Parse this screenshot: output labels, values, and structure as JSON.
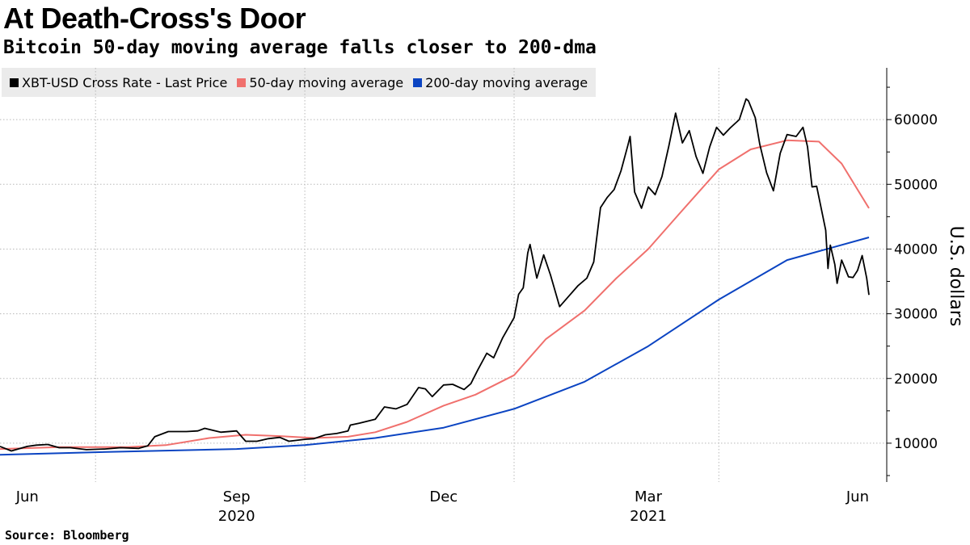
{
  "header": {
    "title": "At Death-Cross's Door",
    "subtitle": "Bitcoin 50-day moving average falls closer to 200-dma"
  },
  "footer": {
    "source": "Source: Bloomberg"
  },
  "chart_data": {
    "type": "line",
    "title": "At Death-Cross's Door",
    "subtitle": "Bitcoin 50-day moving average falls closer to 200-dma",
    "ylabel": "U.S. dollars",
    "xlabel": "",
    "ylim": [
      4000,
      68000
    ],
    "yticks": [
      10000,
      20000,
      30000,
      40000,
      50000,
      60000
    ],
    "ytick_labels": [
      "10000",
      "20000",
      "30000",
      "40000",
      "50000",
      "60000"
    ],
    "xlim": [
      "2020-05-20",
      "2021-06-06"
    ],
    "xticks": [
      {
        "date": "2020-06-01",
        "label": "Jun",
        "year": "",
        "gridline": false
      },
      {
        "date": "2020-09-01",
        "label": "Sep",
        "year": "2020",
        "gridline": false
      },
      {
        "date": "2020-12-01",
        "label": "Dec",
        "year": "",
        "gridline": false
      },
      {
        "date": "2021-03-01",
        "label": "Mar",
        "year": "2021",
        "gridline": false
      },
      {
        "date": "2021-06-01",
        "label": "Jun",
        "year": "",
        "gridline": false
      }
    ],
    "xgrid_dates": [
      "2020-07-01",
      "2020-10-01",
      "2021-01-01",
      "2021-04-01"
    ],
    "grid": true,
    "legend_position": "top-left",
    "colors": {
      "price": "#000000",
      "ma50": "#f0706d",
      "ma200": "#0b44c2",
      "grid": "#b8b8b8",
      "legend_bg": "#ebebeb"
    },
    "series": [
      {
        "name": "XBT-USD Cross Rate - Last Price",
        "color": "#000000",
        "points": [
          [
            "2020-05-20",
            9500
          ],
          [
            "2020-05-25",
            8800
          ],
          [
            "2020-06-01",
            9500
          ],
          [
            "2020-06-05",
            9700
          ],
          [
            "2020-06-10",
            9800
          ],
          [
            "2020-06-15",
            9300
          ],
          [
            "2020-06-20",
            9300
          ],
          [
            "2020-06-27",
            9000
          ],
          [
            "2020-07-05",
            9100
          ],
          [
            "2020-07-12",
            9300
          ],
          [
            "2020-07-20",
            9200
          ],
          [
            "2020-07-24",
            9600
          ],
          [
            "2020-07-27",
            11000
          ],
          [
            "2020-08-02",
            11800
          ],
          [
            "2020-08-10",
            11800
          ],
          [
            "2020-08-15",
            11900
          ],
          [
            "2020-08-18",
            12300
          ],
          [
            "2020-08-25",
            11700
          ],
          [
            "2020-09-01",
            11900
          ],
          [
            "2020-09-05",
            10300
          ],
          [
            "2020-09-10",
            10300
          ],
          [
            "2020-09-15",
            10700
          ],
          [
            "2020-09-20",
            10900
          ],
          [
            "2020-09-24",
            10300
          ],
          [
            "2020-10-01",
            10600
          ],
          [
            "2020-10-05",
            10700
          ],
          [
            "2020-10-10",
            11300
          ],
          [
            "2020-10-15",
            11500
          ],
          [
            "2020-10-20",
            11900
          ],
          [
            "2020-10-21",
            12800
          ],
          [
            "2020-10-25",
            13100
          ],
          [
            "2020-11-01",
            13700
          ],
          [
            "2020-11-05",
            15600
          ],
          [
            "2020-11-10",
            15300
          ],
          [
            "2020-11-15",
            16000
          ],
          [
            "2020-11-20",
            18600
          ],
          [
            "2020-11-23",
            18400
          ],
          [
            "2020-11-26",
            17200
          ],
          [
            "2020-12-01",
            19000
          ],
          [
            "2020-12-05",
            19100
          ],
          [
            "2020-12-10",
            18300
          ],
          [
            "2020-12-13",
            19200
          ],
          [
            "2020-12-16",
            21300
          ],
          [
            "2020-12-20",
            23900
          ],
          [
            "2020-12-23",
            23200
          ],
          [
            "2020-12-27",
            26300
          ],
          [
            "2021-01-01",
            29400
          ],
          [
            "2021-01-03",
            33000
          ],
          [
            "2021-01-05",
            34000
          ],
          [
            "2021-01-07",
            39400
          ],
          [
            "2021-01-08",
            40700
          ],
          [
            "2021-01-11",
            35500
          ],
          [
            "2021-01-14",
            39100
          ],
          [
            "2021-01-17",
            36000
          ],
          [
            "2021-01-21",
            31100
          ],
          [
            "2021-01-24",
            32300
          ],
          [
            "2021-01-29",
            34300
          ],
          [
            "2021-02-02",
            35500
          ],
          [
            "2021-02-05",
            38000
          ],
          [
            "2021-02-08",
            46400
          ],
          [
            "2021-02-11",
            48000
          ],
          [
            "2021-02-14",
            49200
          ],
          [
            "2021-02-17",
            52100
          ],
          [
            "2021-02-20",
            56000
          ],
          [
            "2021-02-21",
            57400
          ],
          [
            "2021-02-23",
            48800
          ],
          [
            "2021-02-26",
            46300
          ],
          [
            "2021-03-01",
            49600
          ],
          [
            "2021-03-04",
            48400
          ],
          [
            "2021-03-07",
            51200
          ],
          [
            "2021-03-10",
            55900
          ],
          [
            "2021-03-13",
            61000
          ],
          [
            "2021-03-16",
            56400
          ],
          [
            "2021-03-19",
            58300
          ],
          [
            "2021-03-22",
            54300
          ],
          [
            "2021-03-25",
            51700
          ],
          [
            "2021-03-28",
            55800
          ],
          [
            "2021-03-31",
            58800
          ],
          [
            "2021-04-03",
            57600
          ],
          [
            "2021-04-06",
            58700
          ],
          [
            "2021-04-10",
            60000
          ],
          [
            "2021-04-13",
            63200
          ],
          [
            "2021-04-14",
            62900
          ],
          [
            "2021-04-17",
            60300
          ],
          [
            "2021-04-19",
            56200
          ],
          [
            "2021-04-22",
            51800
          ],
          [
            "2021-04-25",
            49000
          ],
          [
            "2021-04-28",
            54800
          ],
          [
            "2021-05-01",
            57700
          ],
          [
            "2021-05-05",
            57400
          ],
          [
            "2021-05-08",
            58800
          ],
          [
            "2021-05-10",
            55800
          ],
          [
            "2021-05-12",
            49600
          ],
          [
            "2021-05-14",
            49700
          ],
          [
            "2021-05-16",
            46300
          ],
          [
            "2021-05-18",
            42900
          ],
          [
            "2021-05-19",
            37000
          ],
          [
            "2021-05-20",
            40600
          ],
          [
            "2021-05-22",
            37600
          ],
          [
            "2021-05-23",
            34700
          ],
          [
            "2021-05-25",
            38300
          ],
          [
            "2021-05-28",
            35700
          ],
          [
            "2021-05-30",
            35600
          ],
          [
            "2021-06-01",
            36700
          ],
          [
            "2021-06-03",
            39000
          ],
          [
            "2021-06-05",
            35500
          ],
          [
            "2021-06-06",
            32900
          ]
        ]
      },
      {
        "name": "50-day moving average",
        "color": "#f0706d",
        "points": [
          [
            "2020-05-20",
            9100
          ],
          [
            "2020-06-15",
            9400
          ],
          [
            "2020-07-15",
            9400
          ],
          [
            "2020-08-01",
            9700
          ],
          [
            "2020-08-20",
            10800
          ],
          [
            "2020-09-05",
            11300
          ],
          [
            "2020-09-20",
            11100
          ],
          [
            "2020-10-05",
            10800
          ],
          [
            "2020-10-20",
            11000
          ],
          [
            "2020-11-01",
            11700
          ],
          [
            "2020-11-15",
            13300
          ],
          [
            "2020-12-01",
            15800
          ],
          [
            "2020-12-15",
            17500
          ],
          [
            "2021-01-01",
            20500
          ],
          [
            "2021-01-15",
            26100
          ],
          [
            "2021-02-01",
            30500
          ],
          [
            "2021-02-15",
            35500
          ],
          [
            "2021-03-01",
            40000
          ],
          [
            "2021-03-15",
            45600
          ],
          [
            "2021-04-01",
            52300
          ],
          [
            "2021-04-15",
            55400
          ],
          [
            "2021-05-01",
            56800
          ],
          [
            "2021-05-15",
            56600
          ],
          [
            "2021-05-25",
            53200
          ],
          [
            "2021-06-06",
            46300
          ]
        ]
      },
      {
        "name": "200-day moving average",
        "color": "#0b44c2",
        "points": [
          [
            "2020-05-20",
            8200
          ],
          [
            "2020-07-01",
            8600
          ],
          [
            "2020-09-01",
            9100
          ],
          [
            "2020-10-01",
            9700
          ],
          [
            "2020-11-01",
            10800
          ],
          [
            "2020-12-01",
            12400
          ],
          [
            "2021-01-01",
            15300
          ],
          [
            "2021-02-01",
            19500
          ],
          [
            "2021-03-01",
            25000
          ],
          [
            "2021-04-01",
            32200
          ],
          [
            "2021-05-01",
            38300
          ],
          [
            "2021-06-06",
            41800
          ]
        ]
      }
    ]
  }
}
